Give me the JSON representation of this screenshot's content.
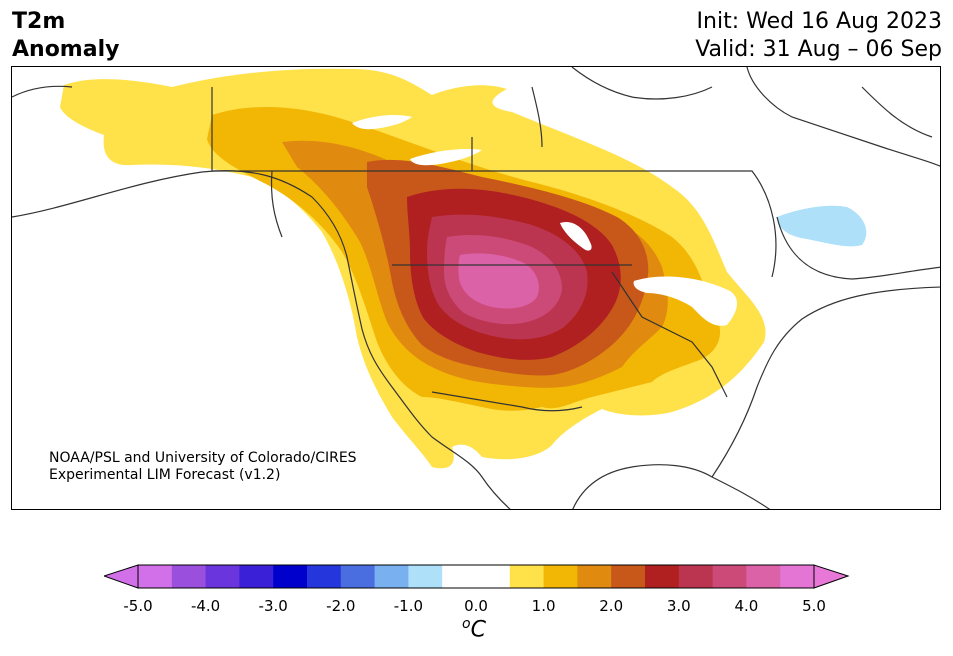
{
  "title": {
    "line1": "T2m",
    "line2": "Anomaly"
  },
  "header_right": {
    "init": "Init: Wed 16 Aug 2023",
    "valid": "Valid: 31 Aug – 06 Sep"
  },
  "credit": {
    "line1": "NOAA/PSL and University of Colorado/CIRES",
    "line2": "Experimental LIM Forecast (v1.2)"
  },
  "colorbar": {
    "unit_base": "C",
    "unit_sup": "o",
    "ticks": [
      "-5.0",
      "-4.0",
      "-3.0",
      "-2.0",
      "-1.0",
      "0.0",
      "1.0",
      "2.0",
      "3.0",
      "4.0",
      "5.0"
    ],
    "colors": [
      "#d170e8",
      "#9a50dc",
      "#6a35dc",
      "#3a20d6",
      "#0000cd",
      "#2537dc",
      "#4a6ee0",
      "#78b0f0",
      "#aee0fa",
      "#ffffff",
      "#ffffff",
      "#ffe14a",
      "#f2b705",
      "#e08a0f",
      "#c8581a",
      "#b02020",
      "#bc3550",
      "#cc4a78",
      "#dc62a8",
      "#e575d5"
    ],
    "under_color": "#d170e8",
    "over_color": "#e878d8"
  },
  "map": {
    "region": "North America",
    "anomaly_colors": {
      "plus_0_5": "#ffe14a",
      "plus_1_0": "#f2b705",
      "plus_1_5": "#e08a0f",
      "plus_2_0": "#c8581a",
      "plus_2_5": "#b02020",
      "plus_3_0": "#bc3550",
      "plus_3_5": "#cc4a78",
      "plus_4_0": "#dc62a8",
      "minus_0_5": "#aee0fa"
    }
  }
}
